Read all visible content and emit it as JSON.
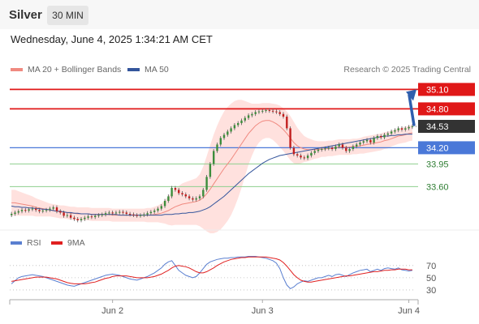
{
  "header": {
    "symbol": "Silver",
    "timeframe": "30 MIN"
  },
  "datetime": "Wednesday, June 4, 2025 1:34:21 AM CET",
  "legend": {
    "items": [
      {
        "label": "MA 20 + Bollinger Bands",
        "color": "#f08a80"
      },
      {
        "label": "MA 50",
        "color": "#34559c"
      }
    ],
    "copyright": "Research © 2025 Trading Central"
  },
  "rsi_legend": {
    "items": [
      {
        "label": "RSI",
        "color": "#5a7fd0"
      },
      {
        "label": "9MA",
        "color": "#e02020"
      }
    ]
  },
  "chart_data": [
    {
      "type": "candlestick",
      "title": "",
      "ylim": [
        32.83,
        35.33
      ],
      "x_ticks": [
        {
          "label": "Jun 2",
          "index": 29
        },
        {
          "label": "Jun 3",
          "index": 72
        },
        {
          "label": "Jun 4",
          "index": 114
        }
      ],
      "levels": [
        {
          "value": 35.1,
          "label": "35.10",
          "kind": "resistance"
        },
        {
          "value": 34.8,
          "label": "34.80",
          "kind": "resistance"
        },
        {
          "value": 34.53,
          "label": "34.53",
          "kind": "current"
        },
        {
          "value": 34.2,
          "label": "34.20",
          "kind": "pivot"
        },
        {
          "value": 33.95,
          "label": "33.95",
          "kind": "support"
        },
        {
          "value": 33.6,
          "label": "33.60",
          "kind": "support"
        }
      ],
      "close": [
        33.18,
        33.2,
        33.22,
        33.24,
        33.23,
        33.25,
        33.26,
        33.24,
        33.22,
        33.23,
        33.24,
        33.26,
        33.28,
        33.22,
        33.2,
        33.15,
        33.16,
        33.12,
        33.1,
        33.08,
        33.1,
        33.12,
        33.14,
        33.13,
        33.15,
        33.16,
        33.17,
        33.19,
        33.2,
        33.19,
        33.2,
        33.21,
        33.2,
        33.18,
        33.17,
        33.16,
        33.15,
        33.16,
        33.17,
        33.19,
        33.21,
        33.23,
        33.26,
        33.3,
        33.38,
        33.45,
        33.58,
        33.55,
        33.5,
        33.48,
        33.45,
        33.42,
        33.4,
        33.42,
        33.45,
        33.55,
        33.75,
        33.95,
        34.15,
        34.25,
        34.35,
        34.4,
        34.45,
        34.5,
        34.55,
        34.58,
        34.62,
        34.66,
        34.7,
        34.72,
        34.75,
        34.76,
        34.77,
        34.78,
        34.77,
        34.76,
        34.75,
        34.72,
        34.68,
        34.5,
        34.2,
        34.1,
        34.08,
        34.05,
        34.04,
        34.08,
        34.12,
        34.15,
        34.17,
        34.18,
        34.19,
        34.2,
        34.18,
        34.22,
        34.25,
        34.2,
        34.15,
        34.18,
        34.22,
        34.25,
        34.28,
        34.3,
        34.32,
        34.28,
        34.35,
        34.38,
        34.36,
        34.4,
        34.42,
        34.45,
        34.47,
        34.5,
        34.48,
        34.5,
        34.52,
        34.53
      ],
      "ma20": [
        33.35,
        33.35,
        33.34,
        33.33,
        33.32,
        33.31,
        33.3,
        33.28,
        33.27,
        33.26,
        33.25,
        33.24,
        33.23,
        33.22,
        33.21,
        33.21,
        33.2,
        33.19,
        33.19,
        33.18,
        33.18,
        33.18,
        33.18,
        33.17,
        33.17,
        33.17,
        33.17,
        33.17,
        33.17,
        33.16,
        33.16,
        33.16,
        33.16,
        33.16,
        33.16,
        33.16,
        33.16,
        33.16,
        33.16,
        33.16,
        33.16,
        33.17,
        33.18,
        33.19,
        33.21,
        33.23,
        33.26,
        33.29,
        33.31,
        33.33,
        33.34,
        33.35,
        33.36,
        33.37,
        33.39,
        33.43,
        33.49,
        33.56,
        33.64,
        33.72,
        33.8,
        33.88,
        33.95,
        34.02,
        34.1,
        34.18,
        34.26,
        34.34,
        34.42,
        34.48,
        34.54,
        34.58,
        34.61,
        34.62,
        34.62,
        34.6,
        34.57,
        34.53,
        34.48,
        34.42,
        34.35,
        34.28,
        34.23,
        34.2,
        34.18,
        34.17,
        34.17,
        34.17,
        34.17,
        34.18,
        34.18,
        34.19,
        34.19,
        34.2,
        34.21,
        34.21,
        34.21,
        34.21,
        34.22,
        34.22,
        34.23,
        34.24,
        34.25,
        34.26,
        34.27,
        34.28,
        34.29,
        34.31,
        34.32,
        34.34,
        34.36,
        34.38,
        34.39,
        34.4,
        34.42,
        34.43
      ],
      "ma50": [
        33.3,
        33.29,
        33.29,
        33.28,
        33.28,
        33.27,
        33.27,
        33.26,
        33.26,
        33.25,
        33.25,
        33.24,
        33.23,
        33.22,
        33.22,
        33.21,
        33.2,
        33.2,
        33.19,
        33.19,
        33.18,
        33.18,
        33.18,
        33.17,
        33.17,
        33.17,
        33.17,
        33.17,
        33.17,
        33.17,
        33.17,
        33.16,
        33.16,
        33.16,
        33.16,
        33.16,
        33.16,
        33.16,
        33.16,
        33.16,
        33.16,
        33.16,
        33.16,
        33.16,
        33.17,
        33.17,
        33.17,
        33.18,
        33.18,
        33.19,
        33.19,
        33.2,
        33.2,
        33.21,
        33.22,
        33.24,
        33.26,
        33.29,
        33.33,
        33.37,
        33.41,
        33.45,
        33.5,
        33.55,
        33.6,
        33.65,
        33.7,
        33.75,
        33.8,
        33.84,
        33.88,
        33.92,
        33.96,
        33.99,
        34.02,
        34.04,
        34.06,
        34.08,
        34.09,
        34.1,
        34.11,
        34.12,
        34.13,
        34.14,
        34.15,
        34.16,
        34.17,
        34.18,
        34.19,
        34.2,
        34.21,
        34.22,
        34.23,
        34.24,
        34.25,
        34.26,
        34.27,
        34.28,
        34.29,
        34.3,
        34.31,
        34.32,
        34.33,
        34.34,
        34.35,
        34.36,
        34.37,
        34.38,
        34.38,
        34.39,
        34.39,
        34.4,
        34.4,
        34.41,
        34.41,
        34.41
      ],
      "bb_width": [
        0.2,
        0.2,
        0.19,
        0.18,
        0.17,
        0.16,
        0.15,
        0.14,
        0.13,
        0.12,
        0.11,
        0.1,
        0.1,
        0.1,
        0.1,
        0.1,
        0.1,
        0.1,
        0.1,
        0.1,
        0.1,
        0.1,
        0.1,
        0.1,
        0.1,
        0.1,
        0.1,
        0.1,
        0.1,
        0.1,
        0.1,
        0.1,
        0.1,
        0.1,
        0.1,
        0.1,
        0.1,
        0.1,
        0.1,
        0.11,
        0.11,
        0.12,
        0.13,
        0.15,
        0.18,
        0.22,
        0.26,
        0.28,
        0.3,
        0.32,
        0.33,
        0.34,
        0.35,
        0.36,
        0.4,
        0.48,
        0.58,
        0.68,
        0.76,
        0.82,
        0.86,
        0.88,
        0.88,
        0.86,
        0.82,
        0.76,
        0.68,
        0.58,
        0.48,
        0.4,
        0.34,
        0.3,
        0.28,
        0.27,
        0.27,
        0.28,
        0.3,
        0.32,
        0.33,
        0.34,
        0.34,
        0.32,
        0.28,
        0.24,
        0.2,
        0.18,
        0.16,
        0.14,
        0.13,
        0.12,
        0.12,
        0.12,
        0.12,
        0.12,
        0.12,
        0.12,
        0.12,
        0.12,
        0.12,
        0.12,
        0.12,
        0.13,
        0.13,
        0.13,
        0.13,
        0.13,
        0.13,
        0.13,
        0.13,
        0.12,
        0.12,
        0.12,
        0.12,
        0.12,
        0.12,
        0.12
      ]
    },
    {
      "type": "line",
      "title": "RSI",
      "ylim": [
        14,
        91
      ],
      "y_ticks": [
        70,
        50,
        30
      ],
      "series": [
        {
          "name": "RSI",
          "values": [
            40,
            45,
            50,
            52,
            53,
            54,
            55,
            54,
            53,
            52,
            50,
            48,
            46,
            44,
            42,
            40,
            38,
            37,
            36,
            38,
            40,
            42,
            44,
            46,
            48,
            50,
            52,
            54,
            55,
            56,
            55,
            54,
            52,
            50,
            48,
            47,
            46,
            48,
            50,
            52,
            55,
            58,
            62,
            66,
            72,
            76,
            78,
            70,
            62,
            58,
            54,
            52,
            50,
            52,
            58,
            65,
            72,
            76,
            78,
            80,
            81,
            82,
            82,
            83,
            83,
            84,
            84,
            84,
            85,
            85,
            85,
            84,
            83,
            82,
            80,
            78,
            74,
            65,
            50,
            38,
            32,
            35,
            40,
            43,
            45,
            44,
            46,
            48,
            50,
            50,
            52,
            54,
            52,
            55,
            56,
            54,
            52,
            55,
            58,
            60,
            62,
            63,
            64,
            60,
            62,
            64,
            62,
            65,
            66,
            65,
            64,
            66,
            63,
            62,
            61,
            62
          ]
        },
        {
          "name": "9MA",
          "values": [
            44,
            45,
            46,
            47,
            48,
            49,
            50,
            51,
            51,
            51,
            51,
            50,
            49,
            48,
            46,
            44,
            42,
            41,
            40,
            40,
            40,
            40,
            41,
            42,
            43,
            45,
            47,
            49,
            50,
            52,
            53,
            53,
            53,
            53,
            52,
            51,
            50,
            50,
            50,
            50,
            51,
            52,
            54,
            56,
            59,
            62,
            66,
            69,
            70,
            69,
            68,
            66,
            63,
            60,
            58,
            58,
            60,
            63,
            66,
            70,
            73,
            76,
            78,
            80,
            81,
            82,
            83,
            83,
            84,
            84,
            84,
            84,
            84,
            84,
            83,
            82,
            81,
            79,
            75,
            69,
            62,
            55,
            50,
            46,
            44,
            43,
            43,
            44,
            45,
            46,
            47,
            48,
            49,
            50,
            51,
            52,
            53,
            53,
            54,
            55,
            56,
            57,
            58,
            59,
            60,
            60,
            61,
            62,
            62,
            63,
            63,
            64,
            64,
            64,
            63,
            63
          ]
        }
      ]
    }
  ]
}
